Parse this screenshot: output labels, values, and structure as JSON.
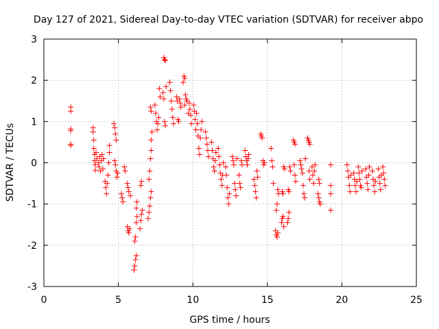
{
  "chart_data": {
    "type": "scatter",
    "title": "Day 127 of 2021, Sidereal Day-to-day VTEC variation (SDTVAR) for receiver abpo",
    "xlabel": "GPS time / hours",
    "ylabel": "SDTVAR / TECUs",
    "xlim": [
      0,
      25
    ],
    "ylim": [
      -3,
      3
    ],
    "xticks": [
      0,
      5,
      10,
      15,
      20,
      25
    ],
    "yticks": [
      -3,
      -2,
      -1,
      0,
      1,
      2,
      3
    ],
    "grid": true,
    "marker": "+",
    "color": "#ff0000",
    "series": [
      {
        "name": "SDTVAR",
        "points": [
          [
            1.8,
            1.35
          ],
          [
            1.8,
            1.25
          ],
          [
            1.8,
            0.82
          ],
          [
            1.8,
            0.78
          ],
          [
            1.8,
            0.45
          ],
          [
            1.8,
            0.42
          ],
          [
            3.3,
            0.85
          ],
          [
            3.3,
            0.75
          ],
          [
            3.35,
            0.55
          ],
          [
            3.35,
            0.35
          ],
          [
            3.4,
            0.2
          ],
          [
            3.4,
            0.05
          ],
          [
            3.45,
            -0.05
          ],
          [
            3.45,
            -0.18
          ],
          [
            3.5,
            0.25
          ],
          [
            3.55,
            0.1
          ],
          [
            3.65,
            0.0
          ],
          [
            3.7,
            -0.1
          ],
          [
            3.75,
            0.15
          ],
          [
            3.8,
            -0.2
          ],
          [
            3.85,
            0.05
          ],
          [
            3.9,
            0.2
          ],
          [
            3.95,
            -0.15
          ],
          [
            4.0,
            0.1
          ],
          [
            4.1,
            -0.45
          ],
          [
            4.15,
            -0.6
          ],
          [
            4.2,
            -0.75
          ],
          [
            4.25,
            -0.5
          ],
          [
            4.3,
            -0.3
          ],
          [
            4.35,
            0.0
          ],
          [
            4.4,
            0.25
          ],
          [
            4.4,
            0.42
          ],
          [
            4.7,
            0.95
          ],
          [
            4.75,
            0.85
          ],
          [
            4.8,
            0.7
          ],
          [
            4.85,
            0.55
          ],
          [
            4.75,
            0.05
          ],
          [
            4.8,
            -0.05
          ],
          [
            4.85,
            -0.2
          ],
          [
            4.9,
            -0.35
          ],
          [
            4.95,
            -0.25
          ],
          [
            5.2,
            -0.75
          ],
          [
            5.25,
            -0.85
          ],
          [
            5.3,
            -0.95
          ],
          [
            5.4,
            -0.1
          ],
          [
            5.45,
            -0.2
          ],
          [
            5.6,
            -1.55
          ],
          [
            5.65,
            -1.65
          ],
          [
            5.7,
            -1.7
          ],
          [
            5.75,
            -1.6
          ],
          [
            5.6,
            -0.5
          ],
          [
            5.65,
            -0.6
          ],
          [
            5.7,
            -0.7
          ],
          [
            5.8,
            -0.8
          ],
          [
            6.05,
            -2.6
          ],
          [
            6.1,
            -2.5
          ],
          [
            6.15,
            -2.35
          ],
          [
            6.2,
            -2.25
          ],
          [
            6.1,
            -1.9
          ],
          [
            6.15,
            -1.8
          ],
          [
            6.2,
            -1.45
          ],
          [
            6.25,
            -1.3
          ],
          [
            6.2,
            -1.1
          ],
          [
            6.25,
            -0.95
          ],
          [
            6.45,
            -1.6
          ],
          [
            6.5,
            -1.4
          ],
          [
            6.55,
            -1.25
          ],
          [
            6.6,
            -1.15
          ],
          [
            6.5,
            -0.55
          ],
          [
            6.55,
            -0.45
          ],
          [
            7.0,
            -1.35
          ],
          [
            7.05,
            -1.2
          ],
          [
            7.1,
            -1.05
          ],
          [
            7.15,
            -0.85
          ],
          [
            7.2,
            -0.7
          ],
          [
            7.05,
            -0.4
          ],
          [
            7.1,
            -0.2
          ],
          [
            7.15,
            0.1
          ],
          [
            7.2,
            0.3
          ],
          [
            7.2,
            0.55
          ],
          [
            7.25,
            0.75
          ],
          [
            7.15,
            1.35
          ],
          [
            7.2,
            1.25
          ],
          [
            7.45,
            1.4
          ],
          [
            7.5,
            1.2
          ],
          [
            7.55,
            1.0
          ],
          [
            7.6,
            0.8
          ],
          [
            7.65,
            0.95
          ],
          [
            7.7,
            1.1
          ],
          [
            7.75,
            1.8
          ],
          [
            7.8,
            1.6
          ],
          [
            8.05,
            2.55
          ],
          [
            8.1,
            2.5
          ],
          [
            8.15,
            2.48
          ],
          [
            8.0,
            1.7
          ],
          [
            8.05,
            1.55
          ],
          [
            8.1,
            1.0
          ],
          [
            8.15,
            0.9
          ],
          [
            8.2,
            1.85
          ],
          [
            8.45,
            1.95
          ],
          [
            8.5,
            1.75
          ],
          [
            8.55,
            1.5
          ],
          [
            8.6,
            1.3
          ],
          [
            8.65,
            1.1
          ],
          [
            8.7,
            0.95
          ],
          [
            8.9,
            1.6
          ],
          [
            8.95,
            1.5
          ],
          [
            9.0,
            1.05
          ],
          [
            9.05,
            1.0
          ],
          [
            9.1,
            1.55
          ],
          [
            9.15,
            1.45
          ],
          [
            9.2,
            1.35
          ],
          [
            9.35,
            1.95
          ],
          [
            9.4,
            2.1
          ],
          [
            9.45,
            2.05
          ],
          [
            9.5,
            1.65
          ],
          [
            9.55,
            1.55
          ],
          [
            9.6,
            1.5
          ],
          [
            9.45,
            1.4
          ],
          [
            9.7,
            1.2
          ],
          [
            9.75,
            1.45
          ],
          [
            9.8,
            1.3
          ],
          [
            9.85,
            1.15
          ],
          [
            9.9,
            0.95
          ],
          [
            10.05,
            1.4
          ],
          [
            10.1,
            1.25
          ],
          [
            10.15,
            1.05
          ],
          [
            10.2,
            0.8
          ],
          [
            10.25,
            1.2
          ],
          [
            10.3,
            0.95
          ],
          [
            10.35,
            0.65
          ],
          [
            10.4,
            0.35
          ],
          [
            10.45,
            0.2
          ],
          [
            10.5,
            0.6
          ],
          [
            10.55,
            0.8
          ],
          [
            10.6,
            1.0
          ],
          [
            10.85,
            0.75
          ],
          [
            10.9,
            0.6
          ],
          [
            10.95,
            0.45
          ],
          [
            11.0,
            0.3
          ],
          [
            11.05,
            0.15
          ],
          [
            11.25,
            0.5
          ],
          [
            11.3,
            0.3
          ],
          [
            11.35,
            0.1
          ],
          [
            11.4,
            -0.1
          ],
          [
            11.45,
            -0.2
          ],
          [
            11.5,
            0.05
          ],
          [
            11.55,
            0.25
          ],
          [
            11.7,
            0.35
          ],
          [
            11.75,
            0.15
          ],
          [
            11.8,
            -0.05
          ],
          [
            11.85,
            -0.25
          ],
          [
            11.9,
            -0.4
          ],
          [
            11.95,
            -0.55
          ],
          [
            12.0,
            -0.3
          ],
          [
            12.05,
            0.0
          ],
          [
            12.2,
            -0.1
          ],
          [
            12.25,
            -0.3
          ],
          [
            12.3,
            -0.6
          ],
          [
            12.35,
            -0.85
          ],
          [
            12.4,
            -1.0
          ],
          [
            12.45,
            -0.75
          ],
          [
            12.65,
            0.15
          ],
          [
            12.7,
            0.05
          ],
          [
            12.75,
            -0.05
          ],
          [
            12.8,
            -0.5
          ],
          [
            12.85,
            -0.65
          ],
          [
            12.9,
            -0.8
          ],
          [
            12.95,
            0.1
          ],
          [
            13.1,
            -0.3
          ],
          [
            13.15,
            -0.5
          ],
          [
            13.2,
            -0.6
          ],
          [
            13.25,
            0.05
          ],
          [
            13.3,
            -0.05
          ],
          [
            13.5,
            0.3
          ],
          [
            13.55,
            0.15
          ],
          [
            13.6,
            0.05
          ],
          [
            13.65,
            -0.05
          ],
          [
            13.7,
            0.1
          ],
          [
            13.75,
            0.2
          ],
          [
            14.1,
            -0.4
          ],
          [
            14.15,
            -0.55
          ],
          [
            14.2,
            -0.7
          ],
          [
            14.25,
            -0.85
          ],
          [
            14.3,
            -0.2
          ],
          [
            14.35,
            -0.35
          ],
          [
            14.55,
            0.7
          ],
          [
            14.6,
            0.65
          ],
          [
            14.65,
            0.6
          ],
          [
            14.7,
            0.05
          ],
          [
            14.75,
            -0.05
          ],
          [
            14.8,
            0.0
          ],
          [
            15.25,
            0.35
          ],
          [
            15.3,
            0.05
          ],
          [
            15.35,
            -0.1
          ],
          [
            15.4,
            -0.5
          ],
          [
            15.55,
            -1.65
          ],
          [
            15.6,
            -1.75
          ],
          [
            15.65,
            -1.8
          ],
          [
            15.7,
            -1.7
          ],
          [
            15.6,
            -1.15
          ],
          [
            15.65,
            -1.0
          ],
          [
            15.7,
            -0.65
          ],
          [
            15.75,
            -0.75
          ],
          [
            15.95,
            -1.45
          ],
          [
            16.0,
            -1.35
          ],
          [
            16.05,
            -1.3
          ],
          [
            16.1,
            -1.55
          ],
          [
            16.0,
            -0.7
          ],
          [
            16.05,
            -0.75
          ],
          [
            16.1,
            -0.1
          ],
          [
            16.15,
            -0.15
          ],
          [
            16.35,
            -1.45
          ],
          [
            16.4,
            -1.35
          ],
          [
            16.45,
            -1.2
          ],
          [
            16.4,
            -0.65
          ],
          [
            16.45,
            -0.7
          ],
          [
            16.5,
            -0.1
          ],
          [
            16.55,
            -0.2
          ],
          [
            16.75,
            0.55
          ],
          [
            16.8,
            0.5
          ],
          [
            16.85,
            0.45
          ],
          [
            16.8,
            -0.05
          ],
          [
            16.85,
            -0.3
          ],
          [
            16.9,
            -0.45
          ],
          [
            17.2,
            0.05
          ],
          [
            17.25,
            -0.05
          ],
          [
            17.3,
            -0.15
          ],
          [
            17.35,
            -0.25
          ],
          [
            17.4,
            -0.55
          ],
          [
            17.45,
            -0.75
          ],
          [
            17.5,
            -0.85
          ],
          [
            17.55,
            0.1
          ],
          [
            17.7,
            0.6
          ],
          [
            17.75,
            0.55
          ],
          [
            17.8,
            0.5
          ],
          [
            17.85,
            0.45
          ],
          [
            17.8,
            -0.2
          ],
          [
            17.85,
            -0.4
          ],
          [
            18.0,
            -0.1
          ],
          [
            18.05,
            -0.3
          ],
          [
            18.1,
            -0.5
          ],
          [
            18.15,
            -0.2
          ],
          [
            18.2,
            -0.05
          ],
          [
            18.4,
            -0.75
          ],
          [
            18.45,
            -0.85
          ],
          [
            18.5,
            -0.95
          ],
          [
            18.55,
            -1.0
          ],
          [
            18.45,
            -0.4
          ],
          [
            18.5,
            -0.5
          ],
          [
            19.25,
            -0.05
          ],
          [
            19.25,
            -0.55
          ],
          [
            19.25,
            -0.75
          ],
          [
            19.25,
            -1.15
          ],
          [
            20.35,
            -0.05
          ],
          [
            20.4,
            -0.2
          ],
          [
            20.45,
            -0.35
          ],
          [
            20.5,
            -0.55
          ],
          [
            20.55,
            -0.7
          ],
          [
            20.6,
            -0.3
          ],
          [
            20.8,
            -0.25
          ],
          [
            20.85,
            -0.4
          ],
          [
            20.9,
            -0.55
          ],
          [
            20.95,
            -0.7
          ],
          [
            21.0,
            -0.45
          ],
          [
            21.1,
            -0.1
          ],
          [
            21.15,
            -0.25
          ],
          [
            21.2,
            -0.4
          ],
          [
            21.25,
            -0.55
          ],
          [
            21.3,
            -0.6
          ],
          [
            21.35,
            -0.2
          ],
          [
            21.6,
            -0.15
          ],
          [
            21.65,
            -0.35
          ],
          [
            21.7,
            -0.5
          ],
          [
            21.75,
            -0.65
          ],
          [
            21.8,
            -0.3
          ],
          [
            21.85,
            -0.1
          ],
          [
            22.05,
            -0.2
          ],
          [
            22.1,
            -0.4
          ],
          [
            22.15,
            -0.55
          ],
          [
            22.2,
            -0.7
          ],
          [
            22.25,
            -0.45
          ],
          [
            22.45,
            -0.15
          ],
          [
            22.5,
            -0.35
          ],
          [
            22.55,
            -0.5
          ],
          [
            22.6,
            -0.65
          ],
          [
            22.65,
            -0.3
          ],
          [
            22.75,
            -0.1
          ],
          [
            22.8,
            -0.25
          ],
          [
            22.85,
            -0.4
          ],
          [
            22.9,
            -0.55
          ]
        ]
      }
    ]
  }
}
